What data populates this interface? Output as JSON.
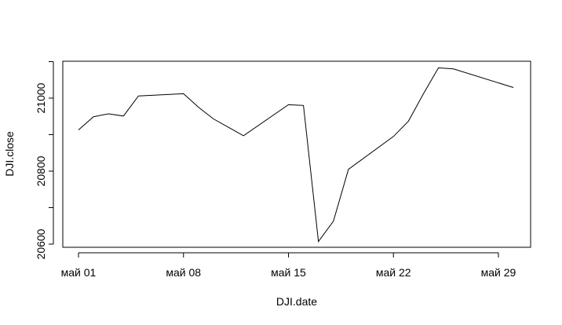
{
  "chart_data": {
    "type": "line",
    "title": "",
    "xlabel": "DJI.date",
    "ylabel": "DJI.close",
    "grid": false,
    "legend": "none",
    "line_color": "#000000",
    "xlim": [
      "2017-04-30",
      "2017-05-31"
    ],
    "ylim": [
      20600,
      21100
    ],
    "x_ticks": [
      {
        "date": "2017-05-01",
        "label": "май 01"
      },
      {
        "date": "2017-05-08",
        "label": "май 08"
      },
      {
        "date": "2017-05-15",
        "label": "май 15"
      },
      {
        "date": "2017-05-22",
        "label": "май 22"
      },
      {
        "date": "2017-05-29",
        "label": "май 29"
      }
    ],
    "y_ticks": [
      20600,
      20800,
      21000
    ],
    "series": [
      {
        "x": [
          "2017-05-01",
          "2017-05-02",
          "2017-05-03",
          "2017-05-04",
          "2017-05-05",
          "2017-05-08",
          "2017-05-09",
          "2017-05-10",
          "2017-05-11",
          "2017-05-12",
          "2017-05-15",
          "2017-05-16",
          "2017-05-17",
          "2017-05-18",
          "2017-05-19",
          "2017-05-22",
          "2017-05-23",
          "2017-05-24",
          "2017-05-25",
          "2017-05-26",
          "2017-05-30"
        ],
        "y": [
          20913,
          20949,
          20957,
          20951,
          21006,
          21012,
          20975,
          20943,
          20920,
          20897,
          20982,
          20980,
          20607,
          20663,
          20805,
          20895,
          20937,
          21012,
          21083,
          21080,
          21029
        ]
      }
    ]
  }
}
